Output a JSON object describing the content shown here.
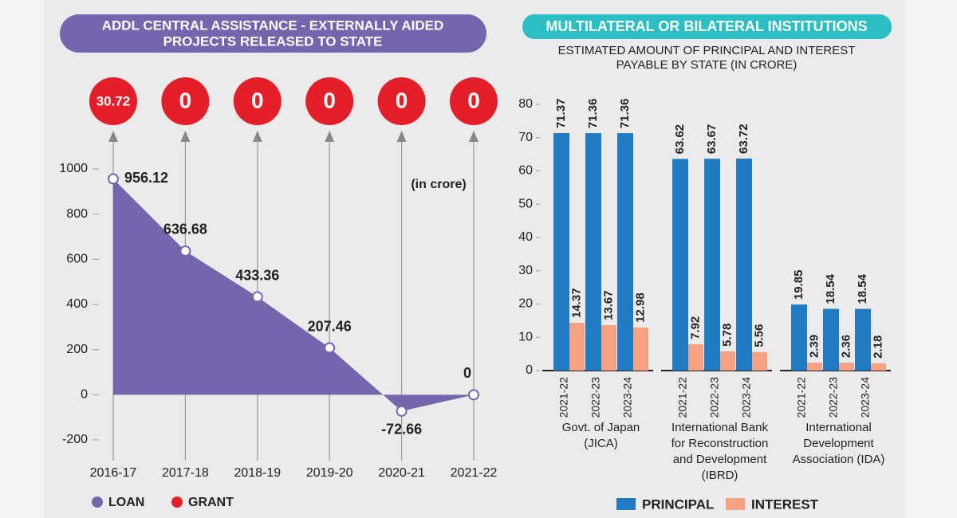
{
  "chart_data": [
    {
      "type": "area",
      "title": [
        "ADDL CENTRAL ASSISTANCE - EXTERNALLY AIDED",
        "PROJECTS RELEASED TO STATE"
      ],
      "annotation": "(in crore)",
      "categories": [
        "2016-17",
        "2017-18",
        "2018-19",
        "2019-20",
        "2020-21",
        "2021-22"
      ],
      "series": [
        {
          "name": "LOAN",
          "color": "#7565ad",
          "values": [
            956.12,
            636.68,
            433.36,
            207.46,
            -72.66,
            0
          ]
        },
        {
          "name": "GRANT",
          "color": "#e3202a",
          "values": [
            30.72,
            0,
            0,
            0,
            0,
            0
          ]
        }
      ],
      "ylim": [
        -200,
        1000
      ],
      "yticks": [
        -200,
        0,
        200,
        400,
        600,
        800,
        1000
      ]
    },
    {
      "type": "bar",
      "title": "MULTILATERAL OR BILATERAL INSTITUTIONS",
      "subtitle": [
        "ESTIMATED AMOUNT OF PRINCIPAL AND INTEREST",
        "PAYABLE BY STATE (IN CRORE)"
      ],
      "categories": [
        "2021-22",
        "2022-23",
        "2023-24",
        "2021-22",
        "2022-23",
        "2023-24",
        "2021-22",
        "2022-23",
        "2023-24"
      ],
      "groups": [
        [
          "Govt. of Japan",
          "(JICA)"
        ],
        [
          "International Bank",
          "for Reconstruction",
          "and Development",
          "(IBRD)"
        ],
        [
          "International",
          "Development",
          "Association (IDA)"
        ]
      ],
      "series": [
        {
          "name": "PRINCIPAL",
          "color": "#1f7cc4",
          "values": [
            71.37,
            71.36,
            71.36,
            63.62,
            63.67,
            63.72,
            19.85,
            18.54,
            18.54
          ]
        },
        {
          "name": "INTEREST",
          "color": "#f4a283",
          "values": [
            14.37,
            13.67,
            12.98,
            7.92,
            5.78,
            5.56,
            2.39,
            2.36,
            2.18
          ]
        }
      ],
      "ylim": [
        0,
        80
      ],
      "yticks": [
        0,
        10,
        20,
        30,
        40,
        50,
        60,
        70,
        80
      ]
    }
  ]
}
